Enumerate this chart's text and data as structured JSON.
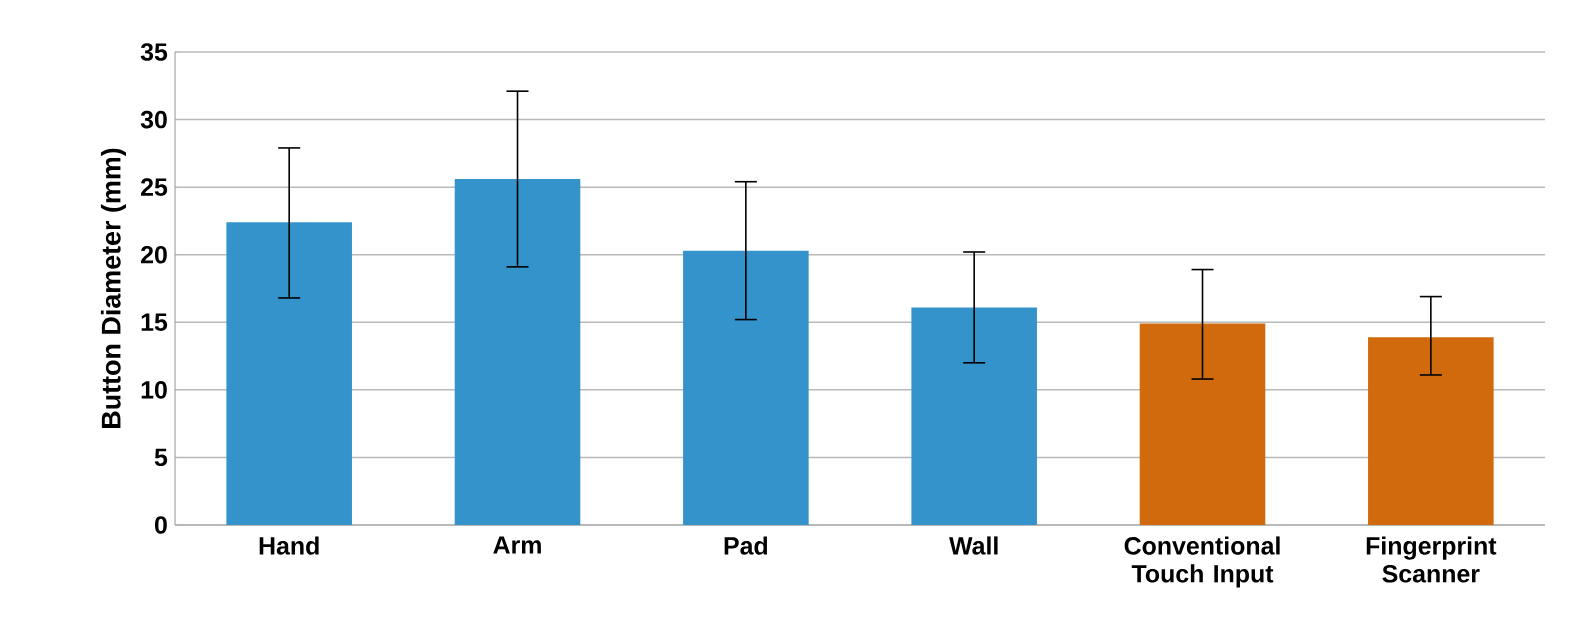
{
  "chart_data": {
    "type": "bar",
    "ylabel": "Button Diameter (mm)",
    "categories": [
      "Hand",
      "Arm",
      "Pad",
      "Wall",
      "Conventional Touch Input",
      "Fingerprint Scanner"
    ],
    "values": [
      22.4,
      25.6,
      20.3,
      16.1,
      14.9,
      13.9
    ],
    "colors": [
      "#3593cc",
      "#3593cc",
      "#3593cc",
      "#3593cc",
      "#d06a0c",
      "#d06a0c"
    ],
    "errors": [
      [
        16.8,
        27.9
      ],
      [
        19.1,
        32.1
      ],
      [
        15.2,
        25.4
      ],
      [
        12.0,
        20.2
      ],
      [
        10.8,
        18.9
      ],
      [
        11.1,
        16.9
      ]
    ],
    "ylim": [
      0,
      35
    ],
    "yticks": [
      0,
      5,
      10,
      15,
      20,
      25,
      30,
      35
    ],
    "grid": "y"
  }
}
